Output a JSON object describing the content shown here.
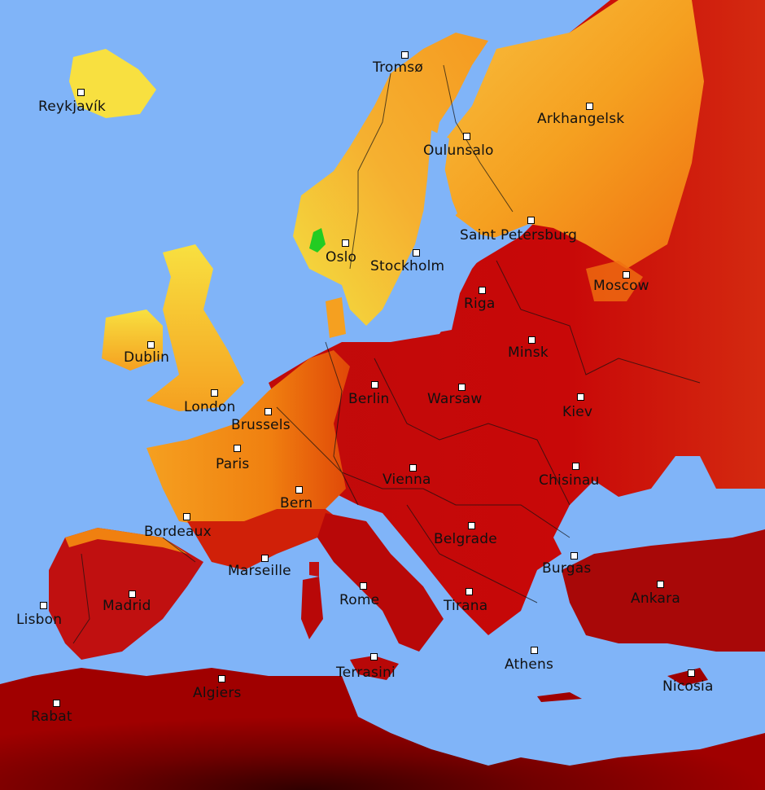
{
  "map": {
    "colors": {
      "sea": "#80b4f8",
      "cool": "#f8f040",
      "mild": "#f5a623",
      "warm": "#f07010",
      "hot": "#c80808",
      "very_hot": "#8a0000",
      "extreme": "#300000",
      "cold_spot": "#22cc22"
    },
    "cities": [
      {
        "name": "Tromsø"
      },
      {
        "name": "Reykjavík"
      },
      {
        "name": "Arkhangelsk"
      },
      {
        "name": "Oulunsalo"
      },
      {
        "name": "Saint Petersburg"
      },
      {
        "name": "Oslo"
      },
      {
        "name": "Stockholm"
      },
      {
        "name": "Moscow"
      },
      {
        "name": "Riga"
      },
      {
        "name": "Dublin"
      },
      {
        "name": "Minsk"
      },
      {
        "name": "Berlin"
      },
      {
        "name": "Warsaw"
      },
      {
        "name": "Kiev"
      },
      {
        "name": "London"
      },
      {
        "name": "Brussels"
      },
      {
        "name": "Paris"
      },
      {
        "name": "Chisinau"
      },
      {
        "name": "Vienna"
      },
      {
        "name": "Bern"
      },
      {
        "name": "Bordeaux"
      },
      {
        "name": "Belgrade"
      },
      {
        "name": "Burgas"
      },
      {
        "name": "Marseille"
      },
      {
        "name": "Madrid"
      },
      {
        "name": "Ankara"
      },
      {
        "name": "Rome"
      },
      {
        "name": "Tirana"
      },
      {
        "name": "Lisbon"
      },
      {
        "name": "Athens"
      },
      {
        "name": "Nicosia"
      },
      {
        "name": "Terrasini"
      },
      {
        "name": "Algiers"
      },
      {
        "name": "Rabat"
      }
    ]
  }
}
